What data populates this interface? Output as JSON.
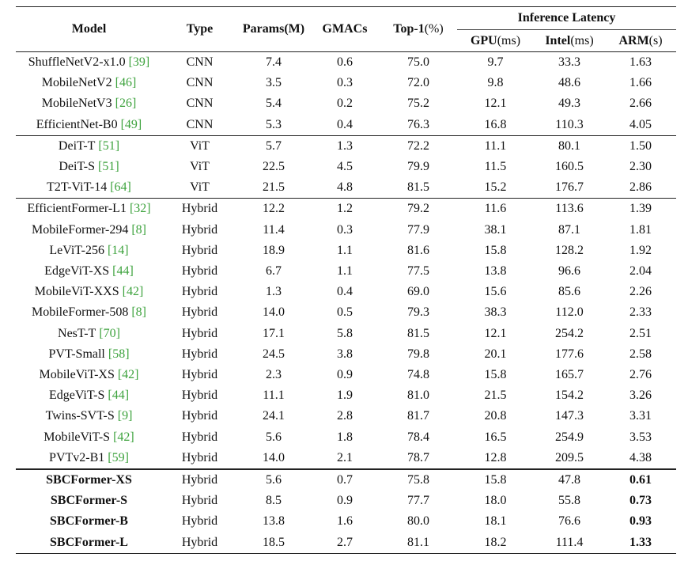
{
  "table": {
    "header": {
      "model": "Model",
      "type": "Type",
      "params": "Params(M)",
      "gmacs": "GMACs",
      "top1": {
        "text": "Top-1",
        "unit": "(%)"
      },
      "latency": "Inference Latency",
      "gpu": {
        "text": "GPU",
        "unit": "(ms)"
      },
      "intel": {
        "text": "Intel",
        "unit": "(ms)"
      },
      "arm": {
        "text": "ARM",
        "unit": "(s)"
      }
    },
    "groups": [
      {
        "rows": [
          {
            "model": "ShuffleNetV2-x1.0",
            "cite": "[39]",
            "cells": [
              "CNN",
              "7.4",
              "0.6",
              "75.0",
              "9.7",
              "33.3",
              "1.63"
            ]
          },
          {
            "model": "MobileNetV2",
            "cite": "[46]",
            "cells": [
              "CNN",
              "3.5",
              "0.3",
              "72.0",
              "9.8",
              "48.6",
              "1.66"
            ]
          },
          {
            "model": "MobileNetV3",
            "cite": "[26]",
            "cells": [
              "CNN",
              "5.4",
              "0.2",
              "75.2",
              "12.1",
              "49.3",
              "2.66"
            ]
          },
          {
            "model": "EfficientNet-B0",
            "cite": "[49]",
            "cells": [
              "CNN",
              "5.3",
              "0.4",
              "76.3",
              "16.8",
              "110.3",
              "4.05"
            ]
          }
        ]
      },
      {
        "rows": [
          {
            "model": "DeiT-T",
            "cite": "[51]",
            "cells": [
              "ViT",
              "5.7",
              "1.3",
              "72.2",
              "11.1",
              "80.1",
              "1.50"
            ]
          },
          {
            "model": "DeiT-S",
            "cite": "[51]",
            "cells": [
              "ViT",
              "22.5",
              "4.5",
              "79.9",
              "11.5",
              "160.5",
              "2.30"
            ]
          },
          {
            "model": "T2T-ViT-14",
            "cite": "[64]",
            "cells": [
              "ViT",
              "21.5",
              "4.8",
              "81.5",
              "15.2",
              "176.7",
              "2.86"
            ]
          }
        ]
      },
      {
        "rows": [
          {
            "model": "EfficientFormer-L1",
            "cite": "[32]",
            "cells": [
              "Hybrid",
              "12.2",
              "1.2",
              "79.2",
              "11.6",
              "113.6",
              "1.39"
            ]
          },
          {
            "model": "MobileFormer-294",
            "cite": "[8]",
            "cells": [
              "Hybrid",
              "11.4",
              "0.3",
              "77.9",
              "38.1",
              "87.1",
              "1.81"
            ]
          },
          {
            "model": "LeViT-256",
            "cite": "[14]",
            "cells": [
              "Hybrid",
              "18.9",
              "1.1",
              "81.6",
              "15.8",
              "128.2",
              "1.92"
            ]
          },
          {
            "model": "EdgeViT-XS",
            "cite": "[44]",
            "cells": [
              "Hybrid",
              "6.7",
              "1.1",
              "77.5",
              "13.8",
              "96.6",
              "2.04"
            ]
          },
          {
            "model": "MobileViT-XXS",
            "cite": "[42]",
            "cells": [
              "Hybrid",
              "1.3",
              "0.4",
              "69.0",
              "15.6",
              "85.6",
              "2.26"
            ]
          },
          {
            "model": "MobileFormer-508",
            "cite": "[8]",
            "cells": [
              "Hybrid",
              "14.0",
              "0.5",
              "79.3",
              "38.3",
              "112.0",
              "2.33"
            ]
          },
          {
            "model": "NesT-T",
            "cite": "[70]",
            "cells": [
              "Hybrid",
              "17.1",
              "5.8",
              "81.5",
              "12.1",
              "254.2",
              "2.51"
            ]
          },
          {
            "model": "PVT-Small",
            "cite": "[58]",
            "cells": [
              "Hybrid",
              "24.5",
              "3.8",
              "79.8",
              "20.1",
              "177.6",
              "2.58"
            ]
          },
          {
            "model": "MobileViT-XS",
            "cite": "[42]",
            "cells": [
              "Hybrid",
              "2.3",
              "0.9",
              "74.8",
              "15.8",
              "165.7",
              "2.76"
            ]
          },
          {
            "model": "EdgeViT-S",
            "cite": "[44]",
            "cells": [
              "Hybrid",
              "11.1",
              "1.9",
              "81.0",
              "21.5",
              "154.2",
              "3.26"
            ]
          },
          {
            "model": "Twins-SVT-S",
            "cite": "[9]",
            "cells": [
              "Hybrid",
              "24.1",
              "2.8",
              "81.7",
              "20.8",
              "147.3",
              "3.31"
            ]
          },
          {
            "model": "MobileViT-S",
            "cite": "[42]",
            "cells": [
              "Hybrid",
              "5.6",
              "1.8",
              "78.4",
              "16.5",
              "254.9",
              "3.53"
            ]
          },
          {
            "model": "PVTv2-B1",
            "cite": "[59]",
            "cells": [
              "Hybrid",
              "14.0",
              "2.1",
              "78.7",
              "12.8",
              "209.5",
              "4.38"
            ]
          }
        ]
      },
      {
        "rows": [
          {
            "model": "SBCFormer-XS",
            "cells": [
              "Hybrid",
              "5.6",
              "0.7",
              "75.8",
              "15.8",
              "47.8",
              "0.61"
            ]
          },
          {
            "model": "SBCFormer-S",
            "cells": [
              "Hybrid",
              "8.5",
              "0.9",
              "77.7",
              "18.0",
              "55.8",
              "0.73"
            ]
          },
          {
            "model": "SBCFormer-B",
            "cells": [
              "Hybrid",
              "13.8",
              "1.6",
              "80.0",
              "18.1",
              "76.6",
              "0.93"
            ]
          },
          {
            "model": "SBCFormer-L",
            "cells": [
              "Hybrid",
              "18.5",
              "2.7",
              "81.1",
              "18.2",
              "111.4",
              "1.33"
            ]
          }
        ]
      }
    ]
  }
}
